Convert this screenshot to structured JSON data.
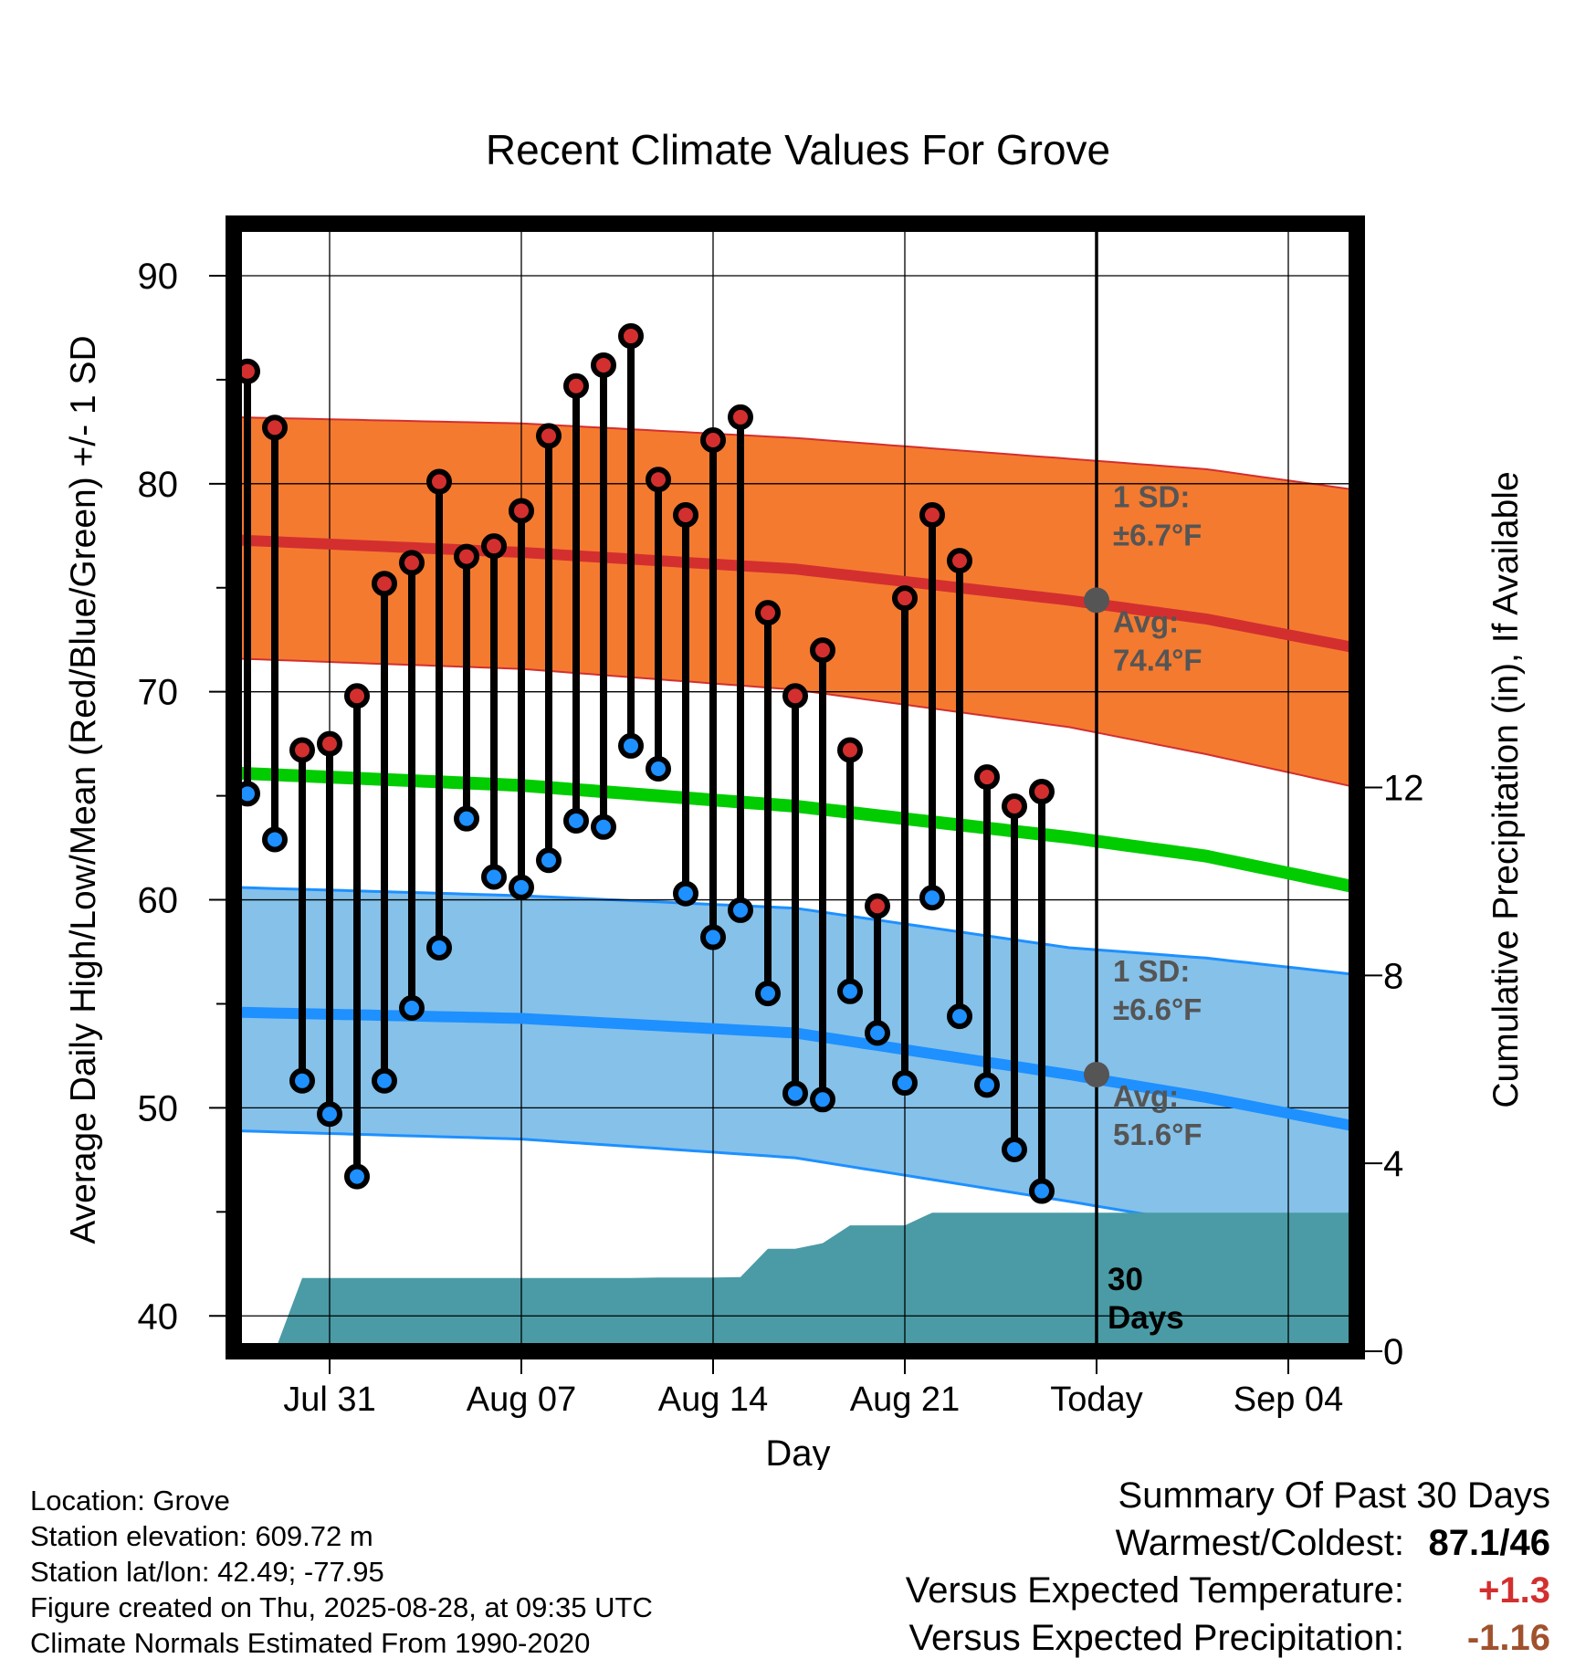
{
  "chart_data": {
    "type": "line",
    "title": "Recent Climate Values For Grove",
    "xlabel": "Day",
    "ylabel": "Average Daily High/Low/Mean (Red/Blue/Green) +/- 1 SD",
    "y2label": "Cumulative Precipitation (in), If Available",
    "x_tick_labels": [
      "Jul 31",
      "Aug 07",
      "Aug 14",
      "Aug 21",
      "Today",
      "Sep 04"
    ],
    "x_tick_days": [
      3,
      10,
      17,
      24,
      31,
      38
    ],
    "xlim_days": [
      -0.5,
      40.5
    ],
    "ylim": [
      38.3,
      92.5
    ],
    "y_ticks": [
      40,
      50,
      60,
      70,
      80,
      90
    ],
    "y2lim": [
      0,
      24
    ],
    "y2_ticks": [
      0,
      4,
      8,
      12
    ],
    "grid": true,
    "observed_days": [
      0,
      1,
      2,
      3,
      4,
      5,
      6,
      7,
      8,
      9,
      10,
      11,
      12,
      13,
      14,
      15,
      16,
      17,
      18,
      19,
      20,
      21,
      22,
      23,
      24,
      25,
      26,
      27,
      28,
      29
    ],
    "series": [
      {
        "name": "High",
        "color": "#d32f2f",
        "values": [
          85.4,
          82.7,
          67.2,
          67.5,
          69.8,
          75.2,
          76.2,
          80.1,
          76.5,
          77.0,
          78.7,
          82.3,
          84.7,
          85.7,
          87.1,
          80.2,
          78.5,
          82.1,
          83.2,
          73.8,
          69.8,
          72.0,
          67.2,
          59.7,
          74.5,
          78.5,
          76.3,
          65.9,
          64.5,
          65.2
        ]
      },
      {
        "name": "Low",
        "color": "#1e90ff",
        "values": [
          65.1,
          62.9,
          51.3,
          49.7,
          46.7,
          51.3,
          54.8,
          57.7,
          63.9,
          61.1,
          60.6,
          61.9,
          63.8,
          63.5,
          67.4,
          66.3,
          60.3,
          58.2,
          59.5,
          55.5,
          50.7,
          50.4,
          55.6,
          53.6,
          51.2,
          60.1,
          54.4,
          51.1,
          48.0,
          46.0
        ]
      }
    ],
    "normals": {
      "days": [
        -0.5,
        10,
        20,
        30,
        35,
        40.5
      ],
      "high_avg": [
        77.3,
        76.7,
        75.9,
        74.4,
        73.5,
        72.1
      ],
      "high_sd_upper": [
        83.2,
        82.9,
        82.2,
        81.2,
        80.7,
        79.7
      ],
      "high_sd_lower": [
        71.6,
        71.1,
        70.1,
        68.3,
        67.0,
        65.4
      ],
      "mean": [
        66.1,
        65.5,
        64.5,
        63.0,
        62.1,
        60.6
      ],
      "low_avg": [
        54.6,
        54.3,
        53.6,
        51.6,
        50.5,
        49.1
      ],
      "low_sd_upper": [
        60.6,
        60.2,
        59.6,
        57.7,
        57.2,
        56.4
      ],
      "low_sd_lower": [
        48.9,
        48.5,
        47.6,
        45.5,
        44.4,
        43.6
      ]
    },
    "precip_cumulative_in": [
      0,
      0,
      1.56,
      1.56,
      1.56,
      1.56,
      1.56,
      1.56,
      1.56,
      1.56,
      1.56,
      1.56,
      1.56,
      1.56,
      1.56,
      1.57,
      1.57,
      1.57,
      1.58,
      2.18,
      2.18,
      2.3,
      2.68,
      2.68,
      2.68,
      2.95,
      2.95,
      2.95,
      2.95,
      2.95,
      2.95
    ],
    "colors": {
      "high_band": "#f47a30",
      "high_avg": "#d32f2f",
      "mean": "#00cc00",
      "low_band": "#85c1e9",
      "low_avg": "#1e90ff",
      "precip": "#4a9ba5",
      "annotation": "#555555"
    },
    "annotations": {
      "high_sd_line1": "1 SD:",
      "high_sd_line2": "±6.7°F",
      "high_avg_line1": "Avg:",
      "high_avg_line2": "74.4°F",
      "high_avg_value": 74.4,
      "low_sd_line1": "1 SD:",
      "low_sd_line2": "±6.6°F",
      "low_avg_line1": "Avg:",
      "low_avg_line2": "51.6°F",
      "low_avg_value": 51.6,
      "days_line1": "30",
      "days_line2": "Days"
    }
  },
  "info": {
    "location": "Location: Grove",
    "elevation": "Station elevation: 609.72 m",
    "latlon": "Station lat/lon: 42.49; -77.95",
    "created": "Figure created on Thu, 2025-08-28, at 09:35 UTC",
    "normals": "Climate Normals Estimated From 1990-2020"
  },
  "summary": {
    "title": "Summary Of Past 30 Days",
    "warm_cold_label": "Warmest/Coldest:",
    "warm_cold_value": "87.1/46",
    "temp_label": "Versus Expected Temperature:",
    "temp_value": "+1.3",
    "temp_color": "#d32f2f",
    "precip_label": "Versus Expected Precipitation:",
    "precip_value": "-1.16",
    "precip_color": "#a0522d"
  }
}
